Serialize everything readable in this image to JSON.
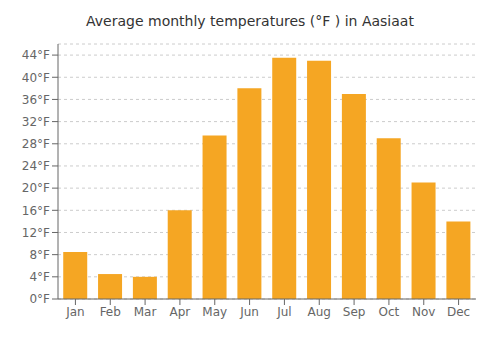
{
  "chart_data": {
    "type": "bar",
    "title": "Average monthly temperatures (°F ) in Aasiaat",
    "categories": [
      "Jan",
      "Feb",
      "Mar",
      "Apr",
      "May",
      "Jun",
      "Jul",
      "Aug",
      "Sep",
      "Oct",
      "Nov",
      "Dec"
    ],
    "values": [
      8.5,
      4.5,
      4.0,
      16.0,
      29.5,
      38.0,
      43.5,
      43.0,
      37.0,
      29.0,
      21.0,
      14.0
    ],
    "color": "#F5A623",
    "ylim": [
      0,
      46
    ],
    "yticks": [
      {
        "value": 0,
        "label": "0°F"
      },
      {
        "value": 4,
        "label": "4°F"
      },
      {
        "value": 8,
        "label": "8°F"
      },
      {
        "value": 12,
        "label": "12°F"
      },
      {
        "value": 16,
        "label": "16°F"
      },
      {
        "value": 20,
        "label": "20°F"
      },
      {
        "value": 24,
        "label": "24°F"
      },
      {
        "value": 28,
        "label": "28°F"
      },
      {
        "value": 32,
        "label": "32°F"
      },
      {
        "value": 36,
        "label": "36°F"
      },
      {
        "value": 40,
        "label": "40°F"
      },
      {
        "value": 44,
        "label": "44°F"
      }
    ],
    "grid": true
  }
}
